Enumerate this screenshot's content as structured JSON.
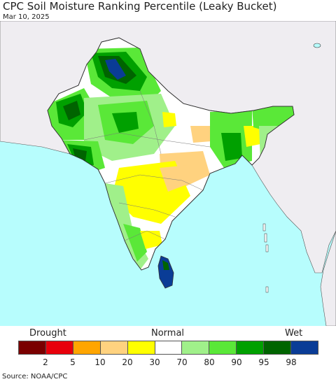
{
  "title": "CPC Soil Moisture Ranking Percentile (Leaky Bucket)",
  "date": "Mar 10, 2025",
  "legend": {
    "drought_label": "Drought",
    "normal_label": "Normal",
    "wet_label": "Wet",
    "colors": [
      "#7a0000",
      "#e8000b",
      "#ffa500",
      "#ffd27f",
      "#ffff00",
      "#ffffff",
      "#a0f08a",
      "#5ae838",
      "#00a000",
      "#006400",
      "#0a3c96"
    ],
    "ticks": [
      "2",
      "5",
      "10",
      "20",
      "30",
      "70",
      "80",
      "90",
      "95",
      "98"
    ]
  },
  "colors": {
    "ocean": "#b7fdfd",
    "land_outside": "#efedf1",
    "india_base": "#ffffff",
    "border": "#333333"
  },
  "source": "Source: NOAA/CPC"
}
